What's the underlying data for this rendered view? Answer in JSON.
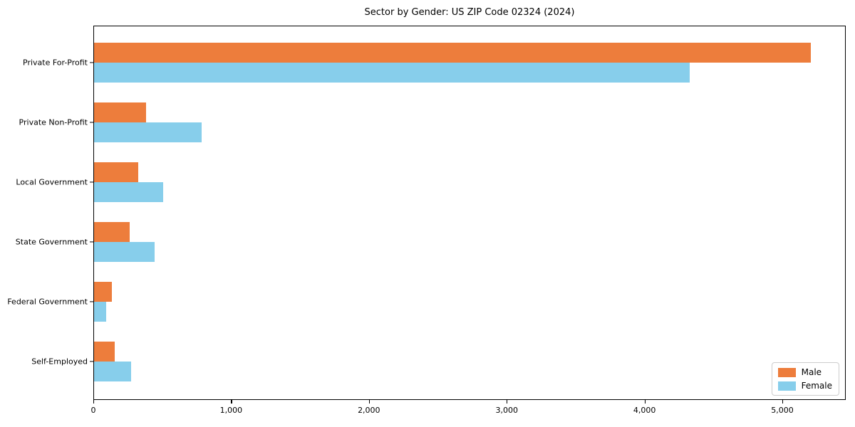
{
  "title": "Sector by Gender: US ZIP Code 02324 (2024)",
  "chart_data": {
    "type": "bar",
    "orientation": "horizontal",
    "title": "Sector by Gender: US ZIP Code 02324 (2024)",
    "categories": [
      "Private For-Profit",
      "Private Non-Profit",
      "Local Government",
      "State Government",
      "Federal Government",
      "Self-Employed"
    ],
    "series": [
      {
        "name": "Male",
        "color": "#ed7d3c",
        "values": [
          5200,
          380,
          320,
          260,
          130,
          150
        ]
      },
      {
        "name": "Female",
        "color": "#87ceeb",
        "values": [
          4320,
          780,
          500,
          440,
          90,
          270
        ]
      }
    ],
    "xlabel": "",
    "ylabel": "",
    "x_ticks": [
      "0",
      "1,000",
      "2,000",
      "3,000",
      "4,000",
      "5,000"
    ],
    "x_tick_values": [
      0,
      1000,
      2000,
      3000,
      4000,
      5000
    ],
    "xlim": [
      0,
      5460
    ],
    "grid": false,
    "legend_position": "lower right",
    "axis_color": "#000000",
    "background_color": "#ffffff"
  }
}
